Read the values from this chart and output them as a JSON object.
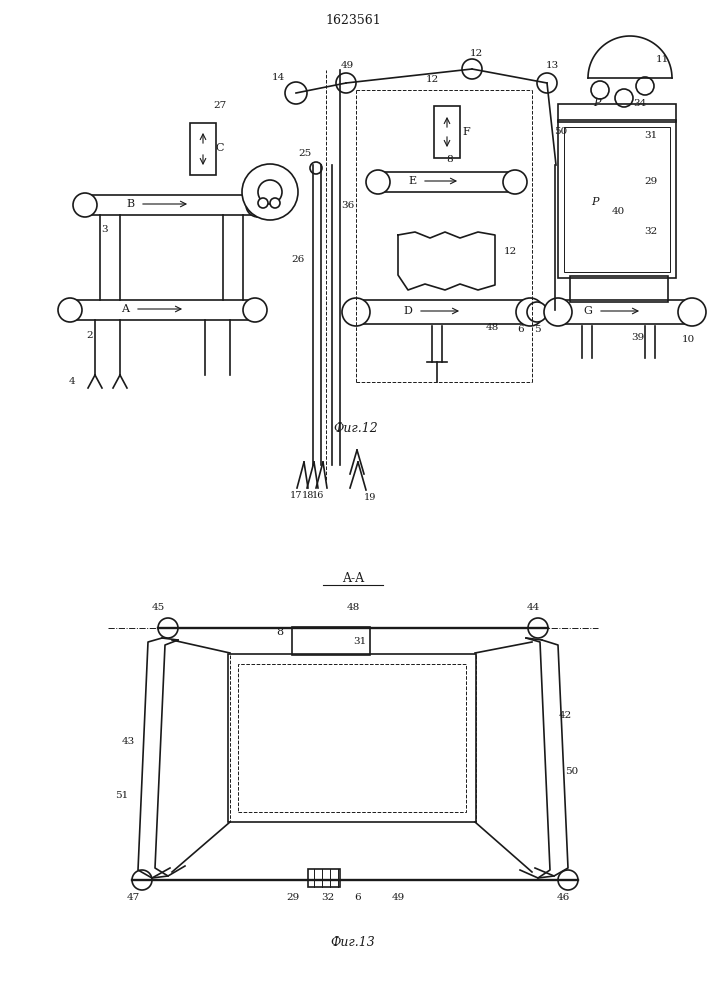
{
  "title": "1623561",
  "fig12_label": "Фиг.12",
  "fig13_label": "Фиг.13",
  "aa_label": "A-A",
  "bg_color": "#ffffff",
  "line_color": "#1a1a1a",
  "line_width": 1.2,
  "thin_line": 0.7
}
